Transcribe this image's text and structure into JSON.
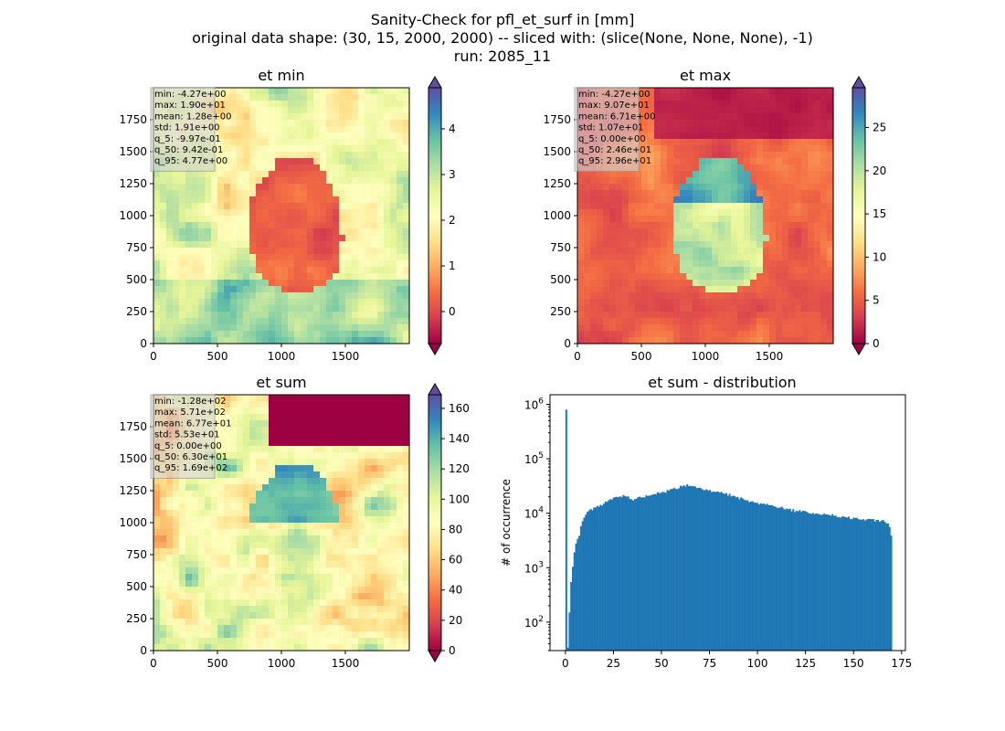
{
  "figure": {
    "suptitle_lines": [
      "Sanity-Check for pfl_et_surf in [mm]",
      "original data shape: (30, 15, 2000, 2000) -- sliced with: (slice(None, None, None), -1)",
      "run: 2085_11"
    ]
  },
  "chart_data": [
    {
      "type": "heatmap",
      "title": "et min",
      "xlabel": "",
      "ylabel": "",
      "xlim": [
        0,
        2000
      ],
      "ylim": [
        0,
        2000
      ],
      "x_ticks": [
        0,
        500,
        1000,
        1500
      ],
      "y_ticks": [
        0,
        250,
        500,
        750,
        1000,
        1250,
        1500,
        1750
      ],
      "colormap": "Spectral",
      "colorbar": {
        "vmin": -0.7,
        "vmax": 4.9,
        "ticks": [
          0,
          1,
          2,
          3,
          4
        ],
        "extend": "both"
      },
      "stats": [
        "min: -4.27e+00",
        "max: 1.90e+01",
        "mean: 1.28e+00",
        "std: 1.91e+00",
        "q_5: -9.97e-01",
        "q_50: 9.42e-01",
        "q_95: 4.77e+00"
      ]
    },
    {
      "type": "heatmap",
      "title": "et max",
      "xlabel": "",
      "ylabel": "",
      "xlim": [
        0,
        2000
      ],
      "ylim": [
        0,
        2000
      ],
      "x_ticks": [
        0,
        500,
        1000,
        1500
      ],
      "y_ticks": [
        0,
        250,
        500,
        750,
        1000,
        1250,
        1500,
        1750
      ],
      "colormap": "Spectral",
      "colorbar": {
        "vmin": 0,
        "vmax": 29.6,
        "ticks": [
          0,
          5,
          10,
          15,
          20,
          25
        ],
        "extend": "both"
      },
      "stats": [
        "min: -4.27e+00",
        "max: 9.07e+01",
        "mean: 6.71e+00",
        "std: 1.07e+01",
        "q_5: 0.00e+00",
        "q_50: 2.46e+01",
        "q_95: 2.96e+01"
      ]
    },
    {
      "type": "heatmap",
      "title": "et sum",
      "xlabel": "",
      "ylabel": "",
      "xlim": [
        0,
        2000
      ],
      "ylim": [
        0,
        2000
      ],
      "x_ticks": [
        0,
        500,
        1000,
        1500
      ],
      "y_ticks": [
        0,
        250,
        500,
        750,
        1000,
        1250,
        1500,
        1750
      ],
      "colormap": "Spectral",
      "colorbar": {
        "vmin": 0,
        "vmax": 169,
        "ticks": [
          0,
          20,
          40,
          60,
          80,
          100,
          120,
          140,
          160
        ],
        "extend": "both"
      },
      "stats": [
        "min: -1.28e+02",
        "max: 5.71e+02",
        "mean: 6.77e+01",
        "std: 5.53e+01",
        "q_5: 0.00e+00",
        "q_50: 6.30e+01",
        "q_95: 1.69e+02"
      ]
    },
    {
      "type": "bar",
      "title": "et sum - distribution",
      "xlabel": "",
      "ylabel": "# of occurrence",
      "yscale": "log",
      "xlim": [
        -8,
        177
      ],
      "ylim": [
        30,
        1500000
      ],
      "x_ticks": [
        0,
        25,
        50,
        75,
        100,
        125,
        150,
        175
      ],
      "y_ticks": [
        100,
        1000,
        10000,
        100000,
        1000000
      ],
      "y_tick_labels": [
        "10^2",
        "10^3",
        "10^4",
        "10^5",
        "10^6"
      ],
      "bar_color": "#1f77b4",
      "bin_width": 0.85,
      "bin_start": 0,
      "profile": [
        [
          0,
          800000
        ],
        [
          0.85,
          20
        ],
        [
          1.7,
          55
        ],
        [
          2.5,
          350
        ],
        [
          3.4,
          800
        ],
        [
          4.3,
          1500
        ],
        [
          5.1,
          2500
        ],
        [
          6.8,
          3500
        ],
        [
          8.5,
          6500
        ],
        [
          10.2,
          9000
        ],
        [
          12,
          11000
        ],
        [
          15,
          12500
        ],
        [
          20,
          15000
        ],
        [
          25,
          19000
        ],
        [
          30,
          21000
        ],
        [
          35,
          18000
        ],
        [
          40,
          19500
        ],
        [
          45,
          22000
        ],
        [
          50,
          24000
        ],
        [
          55,
          27000
        ],
        [
          60,
          31000
        ],
        [
          63,
          33000
        ],
        [
          68,
          29000
        ],
        [
          72,
          27000
        ],
        [
          78,
          25000
        ],
        [
          85,
          22000
        ],
        [
          90,
          19000
        ],
        [
          95,
          17000
        ],
        [
          100,
          15000
        ],
        [
          105,
          14500
        ],
        [
          110,
          13000
        ],
        [
          115,
          12000
        ],
        [
          120,
          11000
        ],
        [
          125,
          10500
        ],
        [
          130,
          10000
        ],
        [
          135,
          9500
        ],
        [
          140,
          9000
        ],
        [
          145,
          8500
        ],
        [
          150,
          8000
        ],
        [
          155,
          7800
        ],
        [
          160,
          7500
        ],
        [
          165,
          7200
        ],
        [
          168.5,
          6500
        ],
        [
          169.3,
          4000
        ]
      ]
    }
  ]
}
